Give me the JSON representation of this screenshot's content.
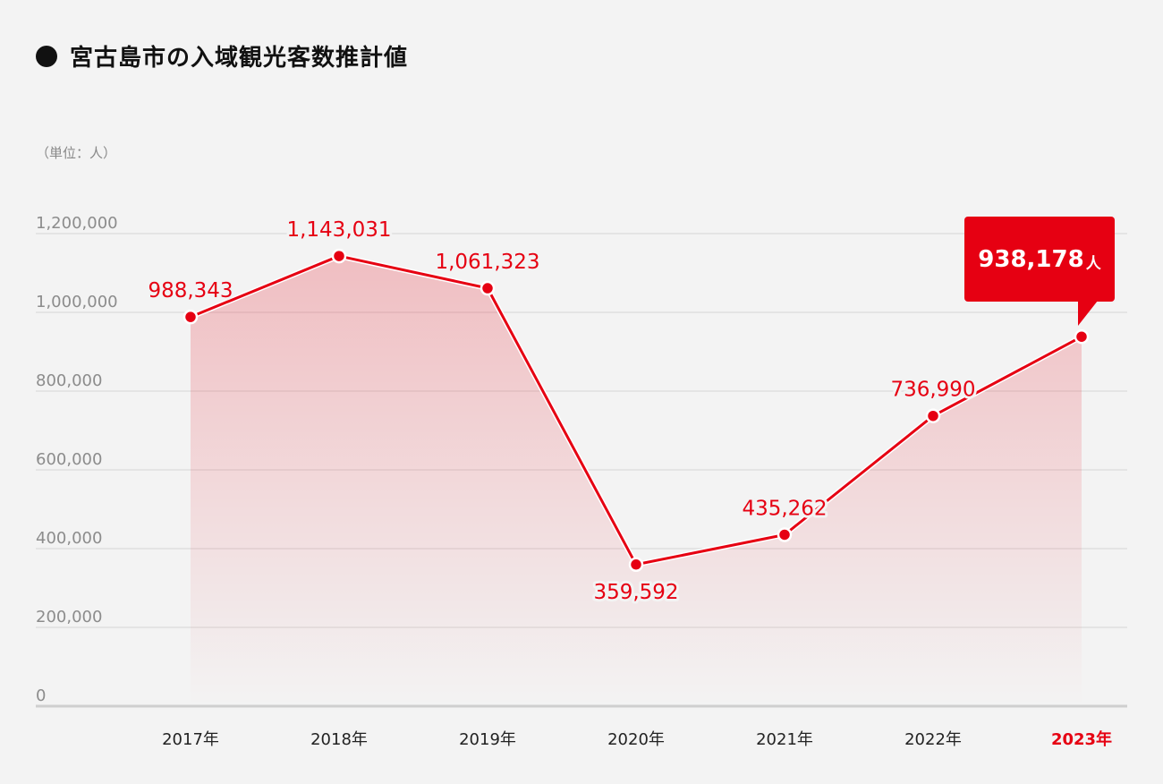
{
  "header": {
    "title": "宮古島市の入域観光客数推計値",
    "unit_label": "（単位：人）"
  },
  "callout": {
    "value": "938,178",
    "suffix": "人"
  },
  "colors": {
    "accent": "#e60012",
    "background": "#f3f3f3",
    "grid": "#d6d6d6",
    "axis_text": "#8c8c8c"
  },
  "chart_data": {
    "type": "line",
    "title": "宮古島市の入域観光客数推計値",
    "xlabel": "",
    "ylabel": "（単位：人）",
    "categories": [
      "2017年",
      "2018年",
      "2019年",
      "2020年",
      "2021年",
      "2022年",
      "2023年"
    ],
    "values": [
      988343,
      1143031,
      1061323,
      359592,
      435262,
      736990,
      938178
    ],
    "value_labels": [
      "988,343",
      "1,143,031",
      "1,061,323",
      "359,592",
      "435,262",
      "736,990",
      ""
    ],
    "highlight_category": "2023年",
    "ylim": [
      0,
      1200000
    ],
    "yticks": [
      0,
      200000,
      400000,
      600000,
      800000,
      1000000,
      1200000
    ],
    "ytick_labels": [
      "0",
      "200,000",
      "400,000",
      "600,000",
      "800,000",
      "1,000,000",
      "1,200,000"
    ],
    "grid": true,
    "area_fill": true,
    "legend": "none"
  }
}
